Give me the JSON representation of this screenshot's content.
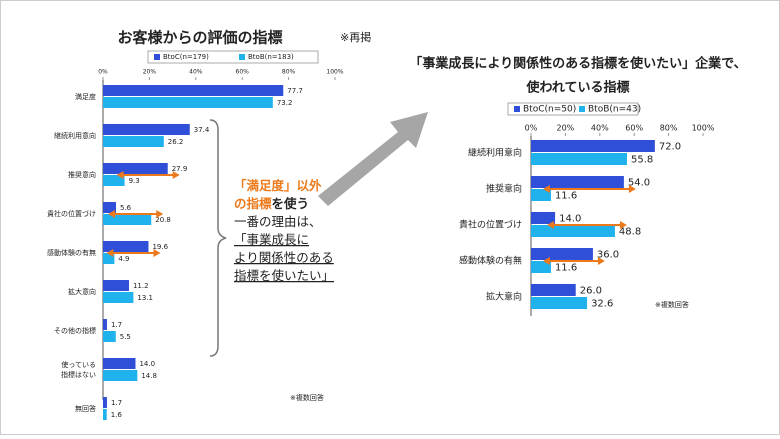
{
  "chart_data": [
    {
      "type": "bar",
      "orientation": "horizontal",
      "title": "お客様からの評価の指標",
      "subtitle": "※再掲",
      "categories": [
        "満足度",
        "継続利用意向",
        "推奨意向",
        "貴社の位置づけ",
        "感動体験の有無",
        "拡大意向",
        "その他の指標",
        "使っている\n指標はない",
        "無回答"
      ],
      "series": [
        {
          "name": "BtoC(n=179)",
          "color": "#2f4fd8",
          "values": [
            77.7,
            37.4,
            27.9,
            5.6,
            19.6,
            11.2,
            1.7,
            14.0,
            1.7
          ],
          "value_labels": [
            "77.7",
            "37.4",
            "27.9",
            "5.6",
            "19.6",
            "11.2",
            "1.7",
            "14.0",
            "1.7"
          ]
        },
        {
          "name": "BtoB(n=183)",
          "color": "#1fb2ec",
          "values": [
            73.2,
            26.2,
            9.3,
            20.8,
            4.9,
            13.1,
            5.5,
            14.8,
            1.6
          ],
          "value_labels": [
            "73.2",
            "26.2",
            "9.3",
            "20.8",
            "4.9",
            "13.1",
            "5.5",
            "14.8",
            "1.6"
          ]
        }
      ],
      "xlim": [
        0,
        100
      ],
      "xticks": [
        {
          "value": 0,
          "label": "0%"
        },
        {
          "value": 20,
          "label": "20%"
        },
        {
          "value": 40,
          "label": "40%"
        },
        {
          "value": 60,
          "label": "60%"
        },
        {
          "value": 80,
          "label": "80%"
        },
        {
          "value": 100,
          "label": "100%"
        }
      ],
      "note": "※複数回答"
    },
    {
      "type": "bar",
      "orientation": "horizontal",
      "title": [
        "「事業成長により関係性のある指標を使いたい」企業で、",
        "使われている指標"
      ],
      "categories": [
        "継続利用意向",
        "推奨意向",
        "貴社の位置づけ",
        "感動体験の有無",
        "拡大意向"
      ],
      "series": [
        {
          "name": "BtoC(n=50)",
          "color": "#2f4fd8",
          "values": [
            72.0,
            54.0,
            14.0,
            36.0,
            26.0
          ],
          "value_labels": [
            "72.0",
            "54.0",
            "14.0",
            "36.0",
            "26.0"
          ]
        },
        {
          "name": "BtoB(n=43)",
          "color": "#1fb2ec",
          "values": [
            55.8,
            11.6,
            48.8,
            11.6,
            32.6
          ],
          "value_labels": [
            "55.8",
            "11.6",
            "48.8",
            "11.6",
            "32.6"
          ]
        }
      ],
      "xlim": [
        0,
        100
      ],
      "xticks": [
        {
          "value": 0,
          "label": "0%"
        },
        {
          "value": 20,
          "label": "20%"
        },
        {
          "value": 40,
          "label": "40%"
        },
        {
          "value": 60,
          "label": "60%"
        },
        {
          "value": 80,
          "label": "80%"
        },
        {
          "value": 100,
          "label": "100%"
        }
      ],
      "note": "※複数回答"
    }
  ],
  "annotation": {
    "lines": [
      [
        {
          "text": "「満足度」以外",
          "color": "#ec7a1c"
        }
      ],
      [
        {
          "text": "の指標",
          "color": "#ec7a1c"
        },
        {
          "text": "を使う",
          "color": "#222222"
        }
      ],
      [
        {
          "text": "一番の理由は、",
          "color": "#222222"
        }
      ],
      [
        {
          "text": "「事業成長に",
          "color": "#222222"
        }
      ],
      [
        {
          "text": "より関係性のある",
          "color": "#222222"
        }
      ],
      [
        {
          "text": "指標を使いたい」",
          "color": "#222222"
        }
      ]
    ]
  }
}
